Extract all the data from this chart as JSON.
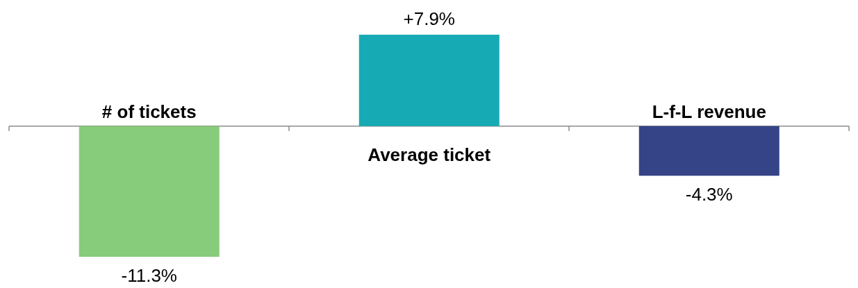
{
  "chart_data": {
    "type": "bar",
    "categories": [
      "# of tickets",
      "Average ticket",
      "L-f-L revenue"
    ],
    "values": [
      -11.3,
      7.9,
      -4.3
    ],
    "colors": [
      "#86cc7a",
      "#16abb4",
      "#354487"
    ],
    "value_labels": [
      "-11.3%",
      "+7.9%",
      "-4.3%"
    ]
  }
}
